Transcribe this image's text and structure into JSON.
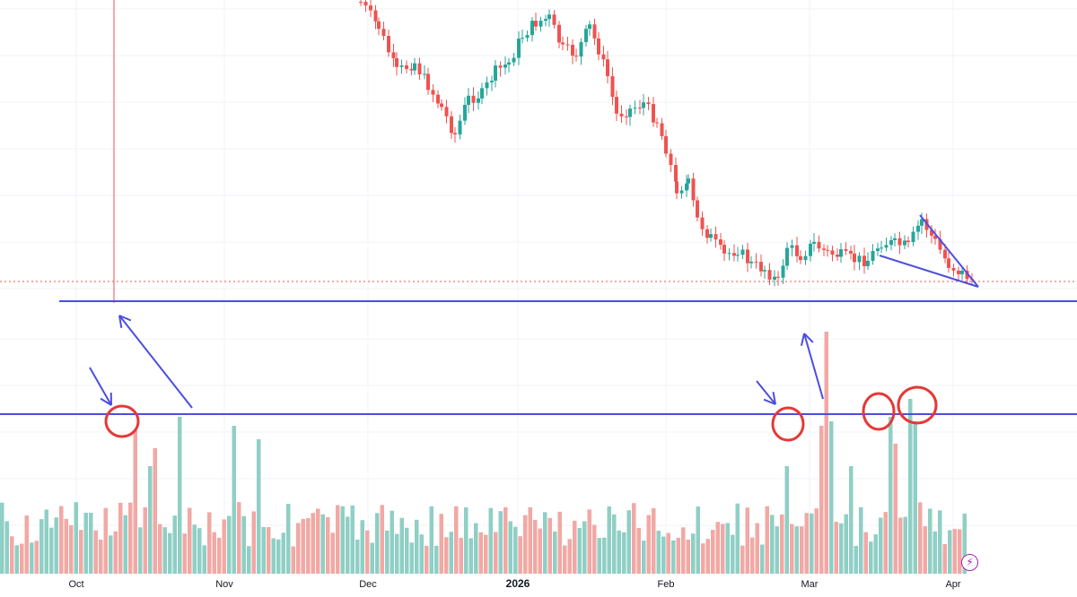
{
  "chart_data": {
    "type": "candlestick",
    "x_ticks": [
      "Oct",
      "Nov",
      "Dec",
      "2026",
      "Feb",
      "Mar",
      "Apr"
    ],
    "bold_ticks": [
      "2026"
    ],
    "volume_pane": true,
    "grid": true,
    "colors": {
      "up": "#26a69a",
      "down": "#ef5350",
      "volume_up": "#8fcfc5",
      "volume_down": "#f2a8a4",
      "drawing": "#4c4ee0",
      "marker": "#e53935",
      "grid": "#f0f3fa",
      "price_line": "#ef5350"
    },
    "annotations": [
      "horizontal support line on price pane",
      "horizontal volume threshold line",
      "falling wedge trendlines",
      "arrows pointing to volume spikes",
      "red circles on volume spikes"
    ]
  },
  "icons": {
    "lightning": "lightning-icon",
    "lightning_glyph": "⚡"
  }
}
